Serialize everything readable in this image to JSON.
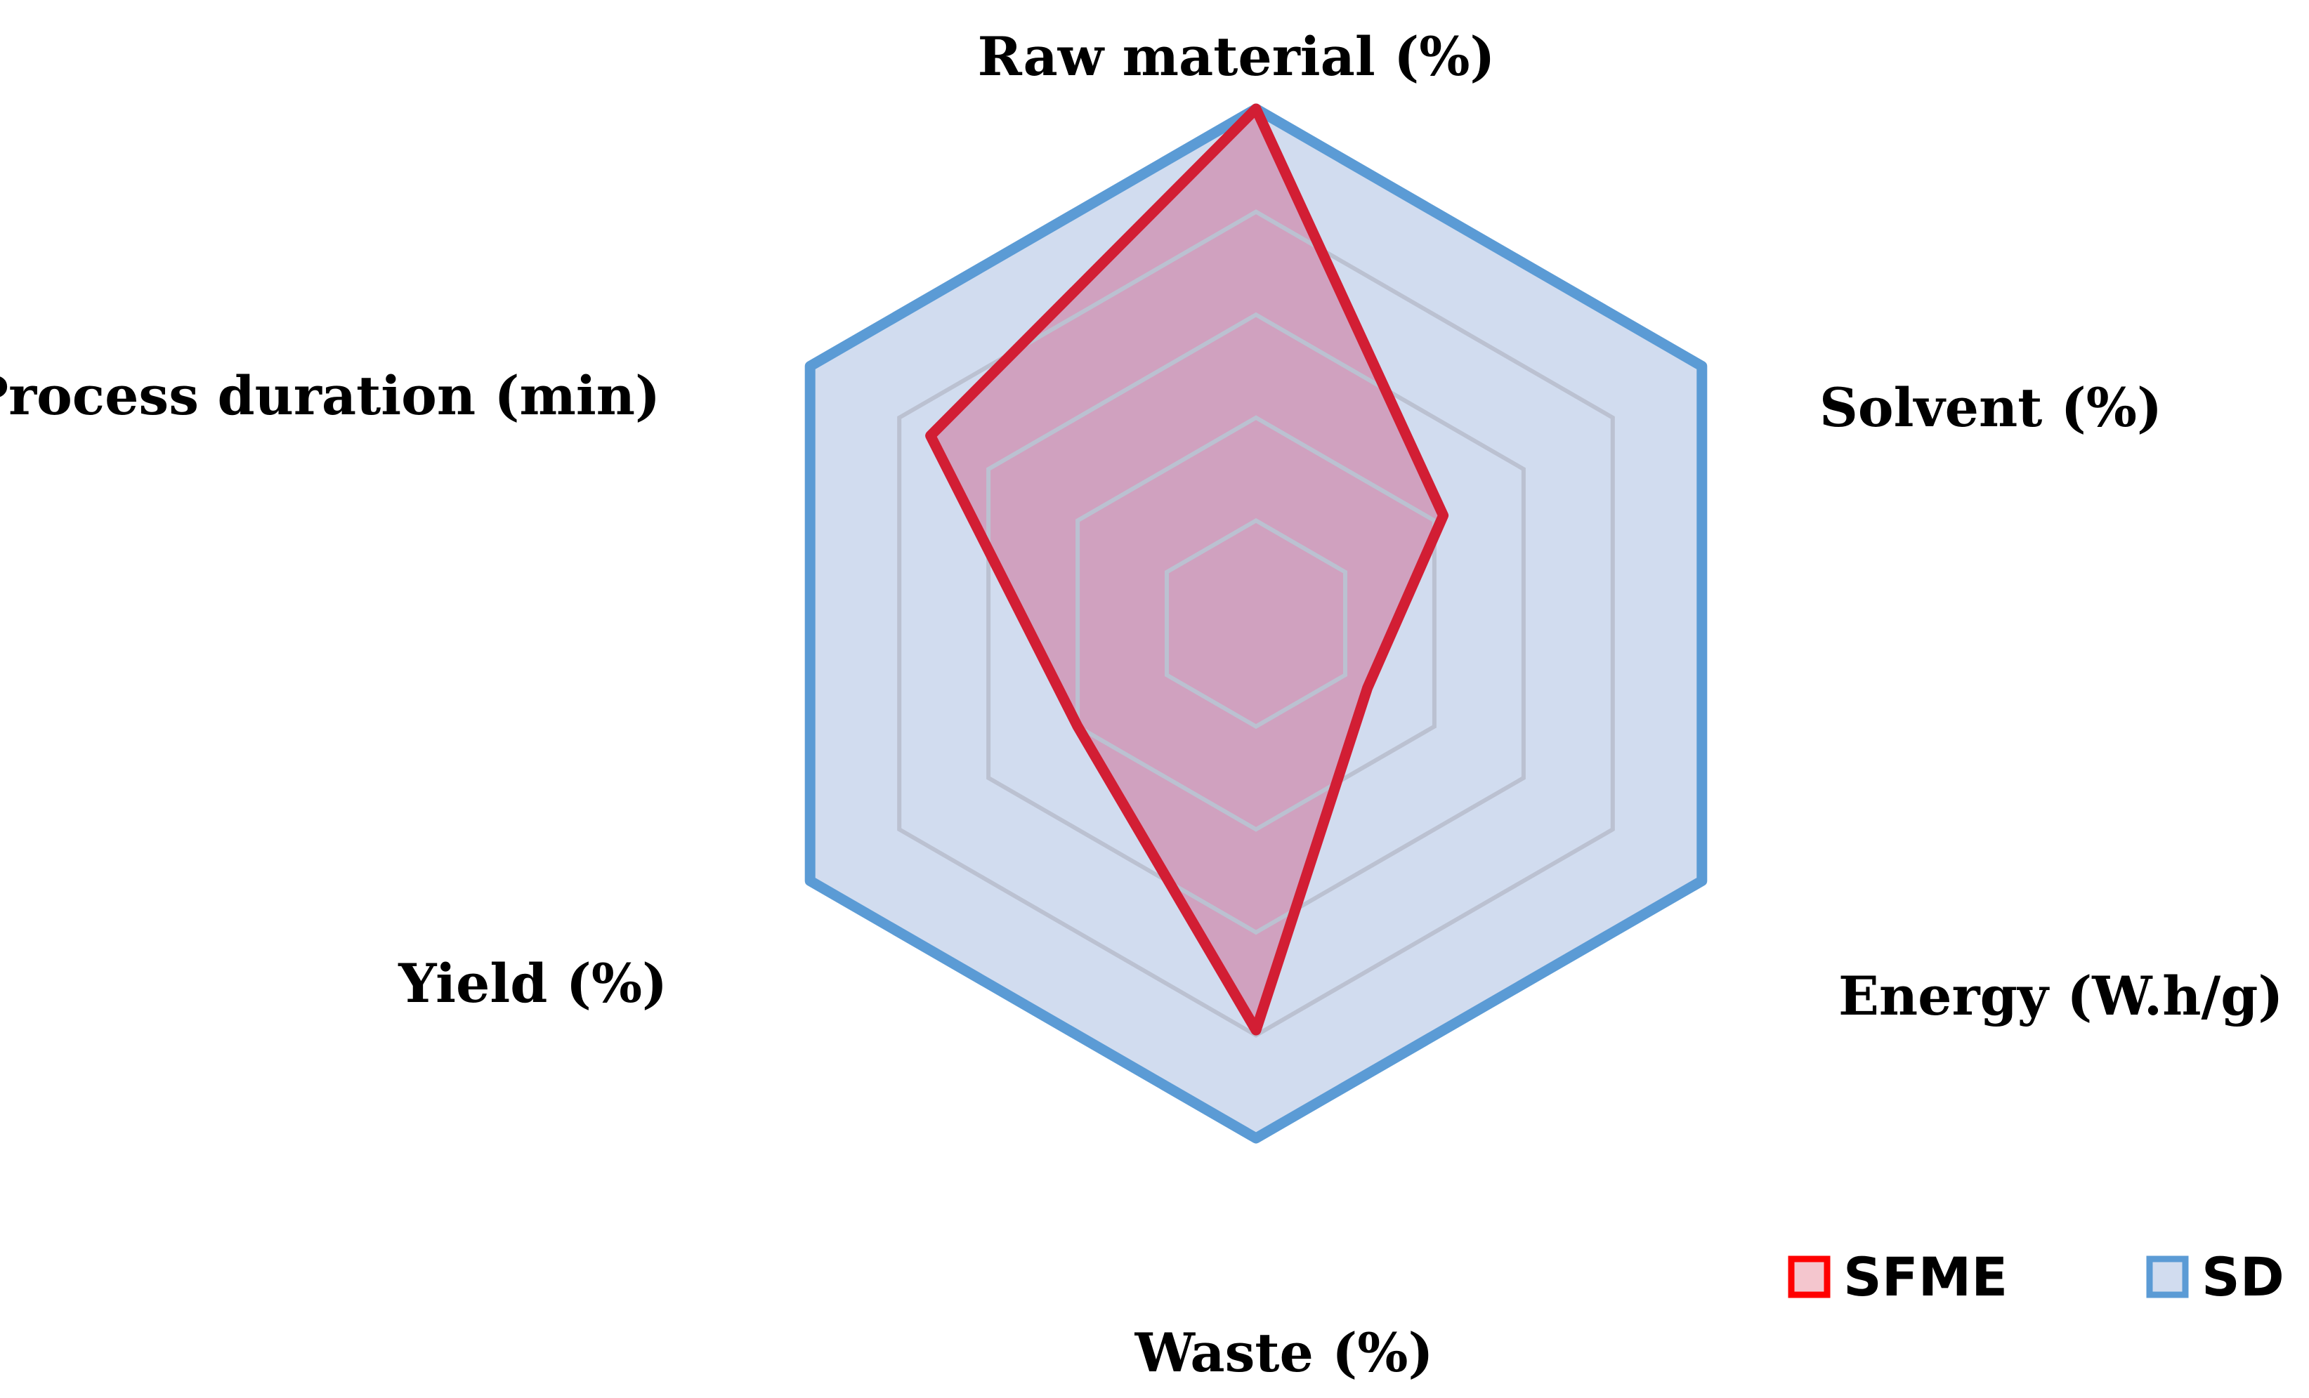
{
  "chart_data": {
    "type": "radar",
    "title": "",
    "axes": [
      "Raw material (%)",
      "Solvent (%)",
      "Energy (W.h/g)",
      "Waste (%)",
      "Yield (%)",
      "Process duration (min)"
    ],
    "range": [
      0,
      100
    ],
    "grid": true,
    "grid_levels": 5,
    "legend_position": "bottom-right",
    "series": [
      {
        "name": "SD",
        "values": [
          100,
          100,
          100,
          100,
          100,
          100
        ],
        "color": "#5B9BD5",
        "fill": "#D1DCEF"
      },
      {
        "name": "SFME",
        "values": [
          100,
          42,
          25,
          79,
          40,
          73
        ],
        "color": "#D21E34",
        "fill": "#D0A1BF"
      }
    ]
  }
}
